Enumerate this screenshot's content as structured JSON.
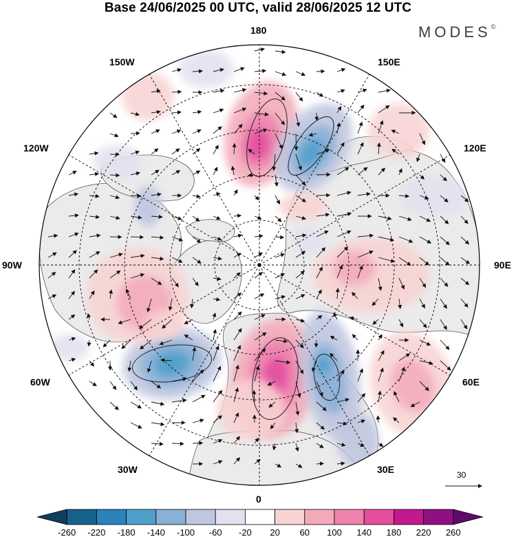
{
  "title": "Base 24/06/2025 00 UTC, valid 28/06/2025 12 UTC",
  "brand": {
    "name": "MODES",
    "mark": "©"
  },
  "longitude_labels": {
    "top": "180",
    "bottom": "0",
    "left": "90W",
    "right": "90E",
    "upper_left_1": "150W",
    "upper_left_2": "120W",
    "upper_right_1": "150E",
    "upper_right_2": "120E",
    "lower_left_1": "60W",
    "lower_left_2": "30W",
    "lower_right_1": "60E",
    "lower_right_2": "30E"
  },
  "reference_vector": {
    "value": "30"
  },
  "colorbar": {
    "labels": [
      "-260",
      "-220",
      "-180",
      "-140",
      "-100",
      "-60",
      "-20",
      "20",
      "60",
      "100",
      "140",
      "180",
      "220",
      "260"
    ],
    "colors": [
      "#0f3e5e",
      "#17628d",
      "#2a83ba",
      "#4f9fcb",
      "#89b0d6",
      "#bfc6e0",
      "#e2e1ef",
      "#ffffff",
      "#f8d3d3",
      "#f3aab9",
      "#ee82ad",
      "#e34e9f",
      "#c2198e",
      "#901083",
      "#5e0a6f"
    ]
  },
  "map_colors": {
    "land": "#ebebeb",
    "ocean": "#ffffff",
    "coast": "#555555",
    "grid": "#000000",
    "arrow": "#111111"
  }
}
